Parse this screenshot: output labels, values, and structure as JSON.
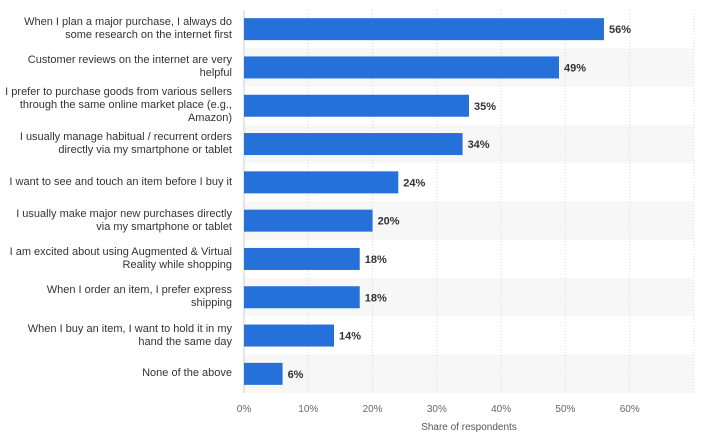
{
  "chart_data": {
    "type": "bar",
    "orientation": "horizontal",
    "categories": [
      "When I plan a major purchase, I always do some research on the internet first",
      "Customer reviews on the internet are very helpful",
      "I prefer to purchase goods from various sellers through the same online market place (e.g., Amazon)",
      "I usually manage habitual / recurrent orders directly via my smartphone or tablet",
      "I want to see and touch an item before I buy it",
      "I usually make major new purchases directly via my smartphone or tablet",
      "I am excited about using Augmented & Virtual Reality while shopping",
      "When I order an item, I prefer express shipping",
      "When I buy an item, I want to hold it in my hand the same day",
      "None of the above"
    ],
    "values": [
      56,
      49,
      35,
      34,
      24,
      20,
      18,
      18,
      14,
      6
    ],
    "value_labels": [
      "56%",
      "49%",
      "35%",
      "34%",
      "24%",
      "20%",
      "18%",
      "18%",
      "14%",
      "6%"
    ],
    "xlim": [
      0,
      70
    ],
    "x_ticks": [
      0,
      10,
      20,
      30,
      40,
      50,
      60
    ],
    "x_tick_labels": [
      "0%",
      "10%",
      "20%",
      "30%",
      "40%",
      "50%",
      "60%"
    ],
    "xlabel": "Share of respondents",
    "ylabel": "",
    "grid": true,
    "bar_color": "#2570d9"
  }
}
